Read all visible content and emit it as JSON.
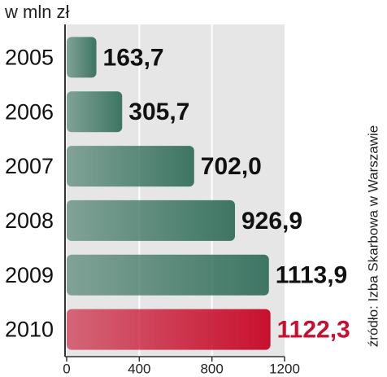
{
  "chart_data": {
    "type": "bar",
    "orientation": "horizontal",
    "title": "w mln zł",
    "source": "źródło: Izba Skarbowa w Warszawie",
    "categories": [
      "2005",
      "2006",
      "2007",
      "2008",
      "2009",
      "2010"
    ],
    "values": [
      163.7,
      305.7,
      702.0,
      926.9,
      1113.9,
      1122.3
    ],
    "value_labels": [
      "163,7",
      "305,7",
      "702,0",
      "926,9",
      "1113,9",
      "1122,3"
    ],
    "colors": [
      "#3d7563",
      "#3d7563",
      "#3d7563",
      "#3d7563",
      "#3d7563",
      "#c8102e"
    ],
    "value_label_colors": [
      "#111111",
      "#111111",
      "#111111",
      "#111111",
      "#111111",
      "#c8102e"
    ],
    "xlim": [
      0,
      1200
    ],
    "xticks": [
      0,
      400,
      800,
      1200
    ],
    "grid": true
  }
}
